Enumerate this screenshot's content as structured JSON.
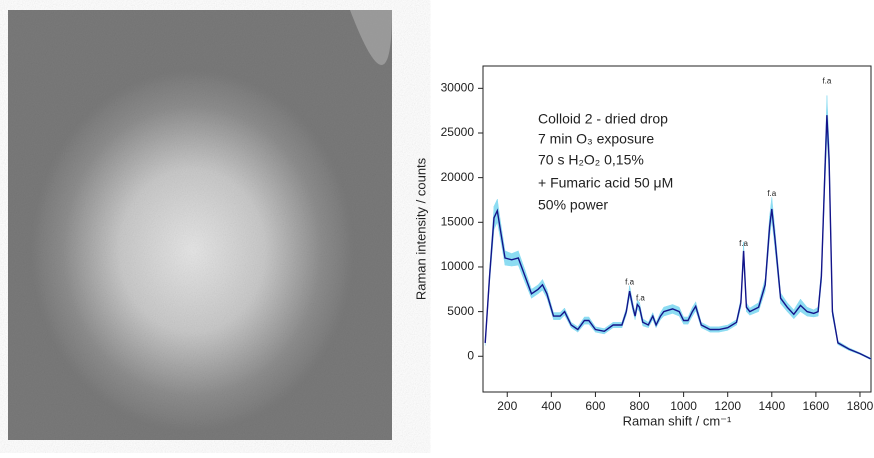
{
  "chart_data": {
    "type": "line",
    "xlabel": "Raman shift / cm⁻¹",
    "ylabel": "Raman intensity / counts",
    "annotations": [
      "Colloid 2 - dried drop",
      "7 min O₃ exposure",
      "70 s H₂O₂ 0,15%",
      "+ Fumaric acid 50 μM",
      "50% power"
    ],
    "peak_labels": [
      {
        "text": "f.a",
        "x": 755,
        "y": 8300
      },
      {
        "text": "f.a",
        "x": 804,
        "y": 6500
      },
      {
        "text": "f.a",
        "x": 1272,
        "y": 12600
      },
      {
        "text": "f.a",
        "x": 1400,
        "y": 18200
      },
      {
        "text": "f.a",
        "x": 1650,
        "y": 30800
      }
    ],
    "color": "#14148a",
    "band_color": "#8cdcf2",
    "x": [
      100,
      120,
      140,
      155,
      170,
      190,
      220,
      250,
      280,
      310,
      340,
      360,
      380,
      410,
      440,
      460,
      490,
      520,
      550,
      570,
      600,
      640,
      680,
      720,
      740,
      755,
      770,
      780,
      790,
      800,
      815,
      840,
      860,
      875,
      895,
      910,
      950,
      980,
      1000,
      1020,
      1040,
      1055,
      1080,
      1120,
      1160,
      1200,
      1240,
      1260,
      1272,
      1285,
      1300,
      1340,
      1370,
      1390,
      1400,
      1415,
      1440,
      1470,
      1500,
      1530,
      1560,
      1590,
      1610,
      1625,
      1640,
      1650,
      1660,
      1675,
      1700,
      1750,
      1800,
      1850
    ],
    "values": [
      1500,
      9000,
      15500,
      16300,
      14000,
      11000,
      10800,
      11000,
      9000,
      7000,
      7500,
      8000,
      7000,
      4500,
      4500,
      5000,
      3500,
      3000,
      4000,
      4000,
      3000,
      2800,
      3500,
      3500,
      5000,
      7300,
      5500,
      4500,
      5800,
      5500,
      3800,
      3500,
      4500,
      3500,
      4500,
      5000,
      5300,
      5000,
      4000,
      4000,
      5000,
      5600,
      3500,
      3000,
      3000,
      3200,
      3800,
      6000,
      11800,
      5500,
      5000,
      5500,
      8000,
      14500,
      16500,
      13000,
      6500,
      5500,
      4700,
      5700,
      5000,
      4800,
      5000,
      9000,
      20000,
      27000,
      22000,
      5000,
      1500,
      800,
      300,
      -300
    ],
    "errors": [
      300,
      800,
      1300,
      1300,
      1000,
      800,
      700,
      800,
      700,
      500,
      500,
      600,
      500,
      400,
      400,
      400,
      300,
      300,
      400,
      400,
      300,
      300,
      300,
      300,
      400,
      600,
      500,
      400,
      500,
      500,
      400,
      300,
      400,
      300,
      400,
      500,
      500,
      500,
      400,
      400,
      500,
      500,
      300,
      300,
      300,
      300,
      300,
      500,
      1000,
      500,
      400,
      500,
      700,
      1200,
      1300,
      1100,
      600,
      500,
      500,
      700,
      500,
      400,
      500,
      800,
      1600,
      2200,
      1800,
      500,
      200,
      150,
      100,
      100
    ],
    "xlim": [
      90,
      1850
    ],
    "ylim": [
      -4000,
      32500
    ],
    "xticks": [
      200,
      400,
      600,
      800,
      1000,
      1200,
      1400,
      1600,
      1800
    ],
    "yticks": [
      0,
      5000,
      10000,
      15000,
      20000,
      25000,
      30000
    ]
  }
}
